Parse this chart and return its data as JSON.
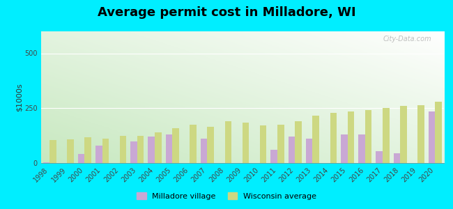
{
  "title": "Average permit cost in Milladore, WI",
  "ylabel": "$1000s",
  "years": [
    1998,
    1999,
    2000,
    2001,
    2002,
    2003,
    2004,
    2005,
    2006,
    2007,
    2008,
    2009,
    2010,
    2011,
    2012,
    2013,
    2014,
    2015,
    2016,
    2017,
    2018,
    2019,
    2020
  ],
  "milladore": [
    2,
    0,
    40,
    80,
    0,
    100,
    120,
    130,
    0,
    110,
    0,
    0,
    0,
    60,
    120,
    110,
    0,
    130,
    130,
    55,
    45,
    0,
    235
  ],
  "wisconsin": [
    105,
    108,
    118,
    112,
    125,
    125,
    140,
    158,
    175,
    165,
    190,
    183,
    170,
    175,
    192,
    215,
    228,
    235,
    242,
    252,
    260,
    265,
    280
  ],
  "milladore_color": "#c9a8d4",
  "wisconsin_color": "#cdd882",
  "outer_bg": "#00eeff",
  "ylim": [
    0,
    600
  ],
  "yticks": [
    0,
    250,
    500
  ],
  "legend_milladore": "Milladore village",
  "legend_wisconsin": "Wisconsin average",
  "title_fontsize": 13,
  "axis_label_fontsize": 8,
  "tick_fontsize": 7
}
